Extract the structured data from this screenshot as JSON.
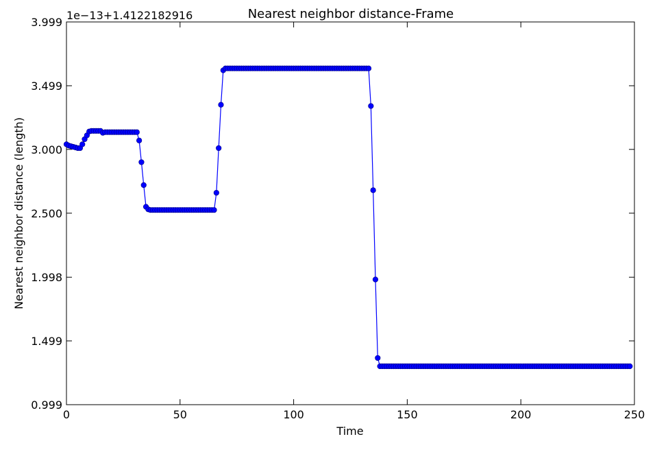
{
  "chart_data": {
    "type": "line",
    "title": "Nearest neighbor distance-Frame",
    "x_label": "Time",
    "y_label": "Nearest neighbor distance (length)",
    "offset_label": "1e−13+1.4122182916",
    "xlim": [
      0,
      250
    ],
    "xticks": [
      0,
      50,
      100,
      150,
      200,
      250
    ],
    "ylim": [
      0.999,
      3.999
    ],
    "yticks": [
      0.999,
      1.499,
      1.998,
      {
        "value": 2.5,
        "label": "2.500"
      },
      {
        "value": 3.0,
        "label": "3.000"
      },
      3.499,
      3.999
    ],
    "series": [
      {
        "name": "Nearest neighbor distance",
        "color": "#0000ff",
        "x": [
          0,
          1,
          2,
          3,
          4,
          5,
          6,
          7,
          8,
          9,
          10,
          11,
          12,
          13,
          14,
          15,
          16,
          17,
          18,
          19,
          20,
          21,
          22,
          23,
          24,
          25,
          26,
          27,
          28,
          29,
          30,
          31,
          32,
          33,
          34,
          35,
          36,
          37,
          38,
          39,
          40,
          41,
          42,
          43,
          44,
          45,
          46,
          47,
          48,
          49,
          50,
          51,
          52,
          53,
          54,
          55,
          56,
          57,
          58,
          59,
          60,
          61,
          62,
          63,
          64,
          65,
          66,
          67,
          68,
          69,
          70,
          71,
          72,
          73,
          74,
          75,
          76,
          77,
          78,
          79,
          80,
          81,
          82,
          83,
          84,
          85,
          86,
          87,
          88,
          89,
          90,
          91,
          92,
          93,
          94,
          95,
          96,
          97,
          98,
          99,
          100,
          101,
          102,
          103,
          104,
          105,
          106,
          107,
          108,
          109,
          110,
          111,
          112,
          113,
          114,
          115,
          116,
          117,
          118,
          119,
          120,
          121,
          122,
          123,
          124,
          125,
          126,
          127,
          128,
          129,
          130,
          131,
          132,
          133,
          134,
          135,
          136,
          137,
          138,
          139,
          140,
          141,
          142,
          143,
          144,
          145,
          146,
          147,
          148,
          149,
          150,
          151,
          152,
          153,
          154,
          155,
          156,
          157,
          158,
          159,
          160,
          161,
          162,
          163,
          164,
          165,
          166,
          167,
          168,
          169,
          170,
          171,
          172,
          173,
          174,
          175,
          176,
          177,
          178,
          179,
          180,
          181,
          182,
          183,
          184,
          185,
          186,
          187,
          188,
          189,
          190,
          191,
          192,
          193,
          194,
          195,
          196,
          197,
          198,
          199,
          200,
          201,
          202,
          203,
          204,
          205,
          206,
          207,
          208,
          209,
          210,
          211,
          212,
          213,
          214,
          215,
          216,
          217,
          218,
          219,
          220,
          221,
          222,
          223,
          224,
          225,
          226,
          227,
          228,
          229,
          230,
          231,
          232,
          233,
          234,
          235,
          236,
          237,
          238,
          239,
          240,
          241,
          242,
          243,
          244,
          245,
          246,
          247,
          248
        ],
        "values": [
          3.04,
          3.03,
          3.025,
          3.02,
          3.015,
          3.01,
          3.01,
          3.04,
          3.08,
          3.11,
          3.14,
          3.145,
          3.145,
          3.145,
          3.145,
          3.145,
          3.13,
          3.135,
          3.135,
          3.135,
          3.135,
          3.135,
          3.135,
          3.135,
          3.135,
          3.135,
          3.135,
          3.135,
          3.135,
          3.135,
          3.135,
          3.135,
          3.07,
          2.9,
          2.72,
          2.55,
          2.53,
          2.525,
          2.525,
          2.525,
          2.525,
          2.525,
          2.525,
          2.525,
          2.525,
          2.525,
          2.525,
          2.525,
          2.525,
          2.525,
          2.525,
          2.525,
          2.525,
          2.525,
          2.525,
          2.525,
          2.525,
          2.525,
          2.525,
          2.525,
          2.525,
          2.525,
          2.525,
          2.525,
          2.525,
          2.525,
          2.66,
          3.01,
          3.35,
          3.62,
          3.635,
          3.635,
          3.635,
          3.635,
          3.635,
          3.635,
          3.635,
          3.635,
          3.635,
          3.635,
          3.635,
          3.635,
          3.635,
          3.635,
          3.635,
          3.635,
          3.635,
          3.635,
          3.635,
          3.635,
          3.635,
          3.635,
          3.635,
          3.635,
          3.635,
          3.635,
          3.635,
          3.635,
          3.635,
          3.635,
          3.635,
          3.635,
          3.635,
          3.635,
          3.635,
          3.635,
          3.635,
          3.635,
          3.635,
          3.635,
          3.635,
          3.635,
          3.635,
          3.635,
          3.635,
          3.635,
          3.635,
          3.635,
          3.635,
          3.635,
          3.635,
          3.635,
          3.635,
          3.635,
          3.635,
          3.635,
          3.635,
          3.635,
          3.635,
          3.635,
          3.635,
          3.635,
          3.635,
          3.635,
          3.34,
          2.68,
          1.98,
          1.365,
          1.3,
          1.3,
          1.3,
          1.3,
          1.3,
          1.3,
          1.3,
          1.3,
          1.3,
          1.3,
          1.3,
          1.3,
          1.3,
          1.3,
          1.3,
          1.3,
          1.3,
          1.3,
          1.3,
          1.3,
          1.3,
          1.3,
          1.3,
          1.3,
          1.3,
          1.3,
          1.3,
          1.3,
          1.3,
          1.3,
          1.3,
          1.3,
          1.3,
          1.3,
          1.3,
          1.3,
          1.3,
          1.3,
          1.3,
          1.3,
          1.3,
          1.3,
          1.3,
          1.3,
          1.3,
          1.3,
          1.3,
          1.3,
          1.3,
          1.3,
          1.3,
          1.3,
          1.3,
          1.3,
          1.3,
          1.3,
          1.3,
          1.3,
          1.3,
          1.3,
          1.3,
          1.3,
          1.3,
          1.3,
          1.3,
          1.3,
          1.3,
          1.3,
          1.3,
          1.3,
          1.3,
          1.3,
          1.3,
          1.3,
          1.3,
          1.3,
          1.3,
          1.3,
          1.3,
          1.3,
          1.3,
          1.3,
          1.3,
          1.3,
          1.3,
          1.3,
          1.3,
          1.3,
          1.3,
          1.3,
          1.3,
          1.3,
          1.3,
          1.3,
          1.3,
          1.3,
          1.3,
          1.3,
          1.3,
          1.3,
          1.3,
          1.3,
          1.3,
          1.3,
          1.3,
          1.3,
          1.3,
          1.3,
          1.3,
          1.3,
          1.3
        ]
      }
    ]
  }
}
